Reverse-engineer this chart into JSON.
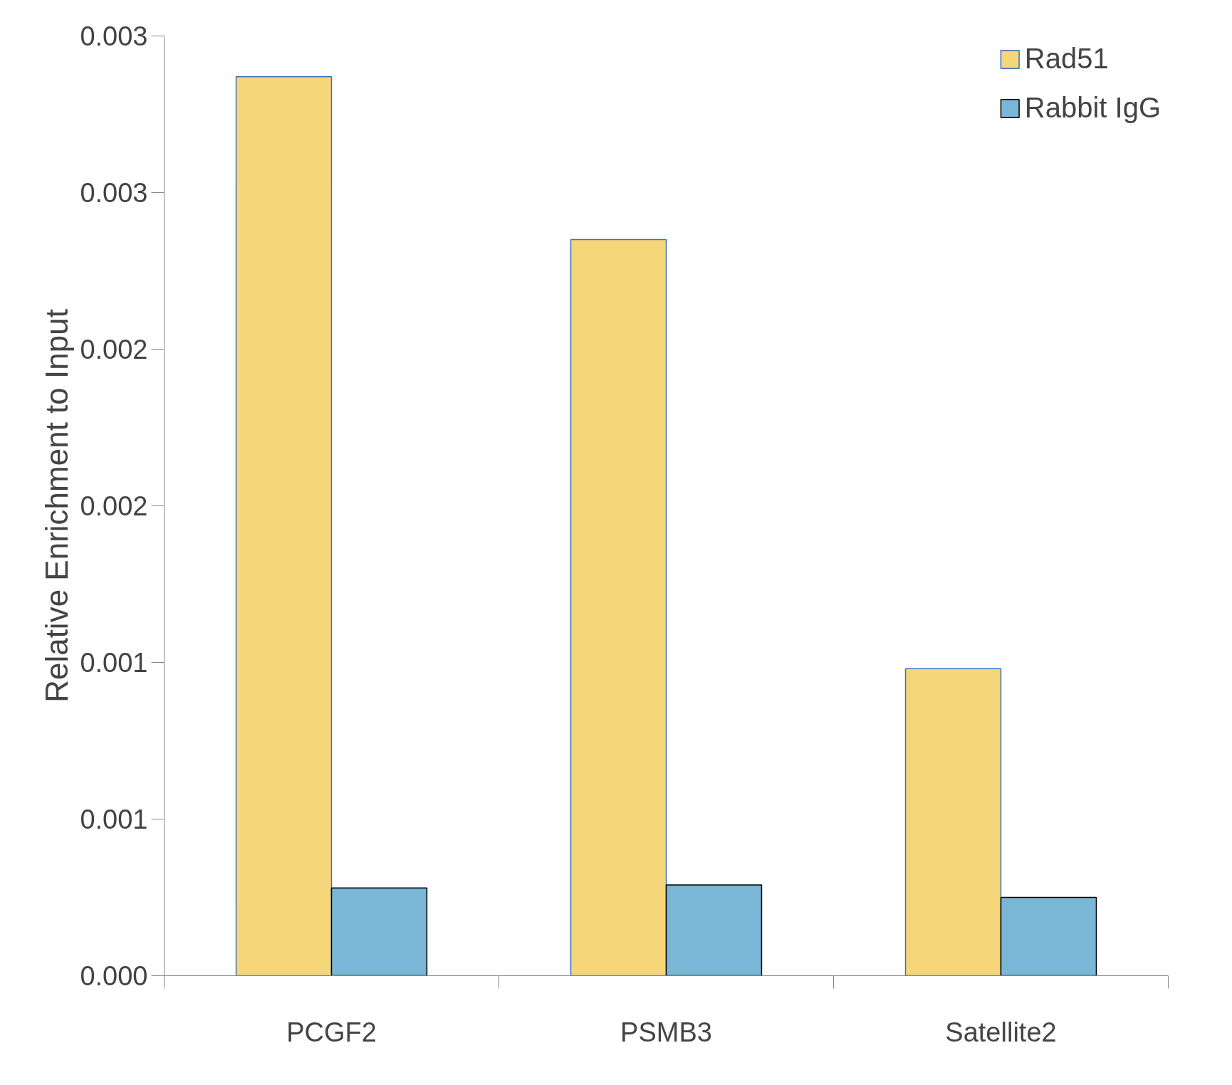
{
  "chart_data": {
    "type": "bar",
    "ylabel": "Relative Enrichment to Input",
    "categories": [
      "PCGF2",
      "PSMB3",
      "Satellite2"
    ],
    "series": [
      {
        "name": "Rad51",
        "color": "#f5d77a",
        "values": [
          0.00287,
          0.00235,
          0.00098
        ]
      },
      {
        "name": "Rabbit IgG",
        "color": "#7ab6d6",
        "values": [
          0.00028,
          0.00029,
          0.00025
        ]
      }
    ],
    "ylim": [
      0,
      0.003
    ],
    "yticks": [
      {
        "value": 0,
        "label": "0.000"
      },
      {
        "value": 0.0005,
        "label": "0.001"
      },
      {
        "value": 0.001,
        "label": "0.001"
      },
      {
        "value": 0.0015,
        "label": "0.002"
      },
      {
        "value": 0.002,
        "label": "0.002"
      },
      {
        "value": 0.0025,
        "label": "0.003"
      },
      {
        "value": 0.003,
        "label": "0.003"
      }
    ],
    "legend": "top right",
    "grid": false
  }
}
